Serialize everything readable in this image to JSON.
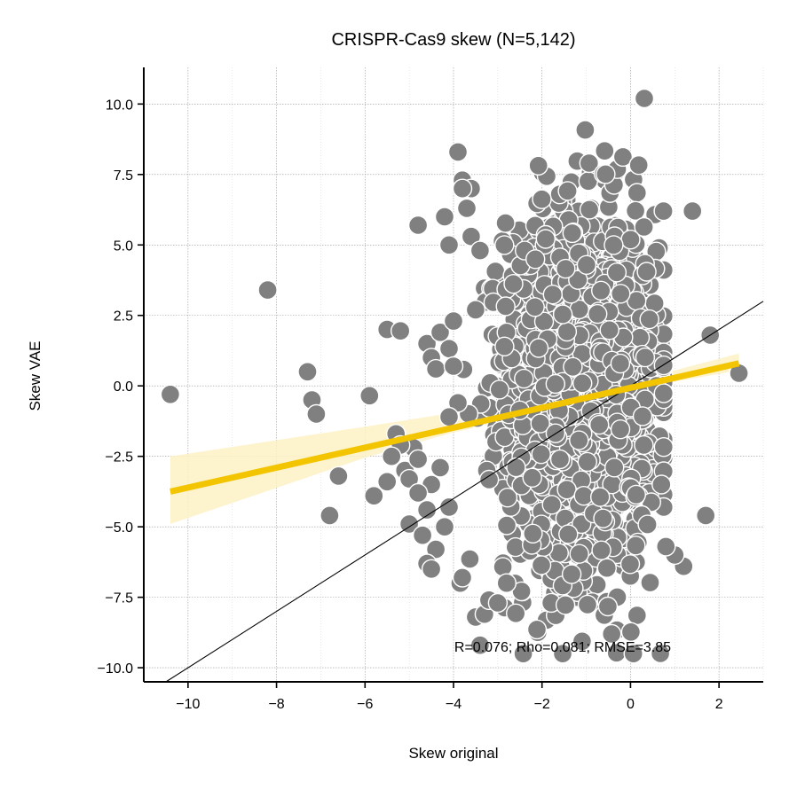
{
  "chart_data": {
    "type": "scatter",
    "title": "CRISPR-Cas9 skew (N=5,142)",
    "xlabel": "Skew original",
    "ylabel": "Skew VAE",
    "xlim": [
      -11,
      3
    ],
    "ylim": [
      -10.5,
      11.3
    ],
    "xticks": [
      -10,
      -8,
      -6,
      -4,
      -2,
      0,
      2
    ],
    "xtick_labels": [
      "−10",
      "−8",
      "−6",
      "−4",
      "−2",
      "0",
      "2"
    ],
    "yticks": [
      -10,
      -7.5,
      -5,
      -2.5,
      0,
      2.5,
      5,
      7.5,
      10
    ],
    "ytick_labels": [
      "−10.0",
      "−7.5",
      "−5.0",
      "−2.5",
      "0.0",
      "2.5",
      "5.0",
      "7.5",
      "10.0"
    ],
    "grid": true,
    "point_color": "#808080",
    "point_edge_color": "#ffffff",
    "regression_color": "#f2c500",
    "regression_ci_color": "#fdf1c4",
    "identity_line_color": "#000000",
    "annotation": "R=0.076; Rho=0.081; RMSE=3.85",
    "regression_line": {
      "x": [
        -10.4,
        2.45
      ],
      "y": [
        -3.75,
        0.8
      ]
    },
    "regression_ci": {
      "x": [
        -10.4,
        -6,
        -4,
        -2,
        0,
        1,
        2.45
      ],
      "lower": [
        -4.9,
        -2.55,
        -1.65,
        -0.95,
        -0.1,
        0.15,
        0.55
      ],
      "upper": [
        -2.5,
        -1.45,
        -0.95,
        -0.45,
        0.25,
        0.55,
        1.15
      ]
    },
    "identity_line": {
      "x": [
        -10.5,
        3
      ],
      "y": [
        -10.5,
        3
      ]
    },
    "outliers": {
      "x": [
        -10.4,
        -8.2,
        -7.2,
        -7.3,
        -7.1,
        -6.6,
        -6.8,
        -5.9,
        -5.8,
        -5.5,
        -5.2,
        -5.3,
        -5.1,
        -5.0,
        -4.8,
        -4.6,
        -4.5,
        -4.4,
        -4.3,
        -4.2,
        -4.1,
        -4.0,
        -3.9,
        -3.8,
        -3.7,
        -3.6,
        -3.5,
        -3.4,
        -4.5,
        -4.6,
        -4.4,
        -5.0,
        -4.9,
        -4.8,
        -4.7,
        -4.6,
        -4.5,
        -4.2,
        -4.1,
        -3.8,
        -3.3,
        -3.2,
        -3.0,
        -2.8,
        1.4,
        1.8,
        2.45,
        1.7,
        0.7,
        0.3,
        1.2,
        1.0,
        0.8,
        -3.8,
        -3.6,
        -3.4,
        -3.5,
        -4.0,
        -3.9,
        -5.2,
        -5.4,
        -5.5,
        -4.8,
        -4.3,
        -4.1
      ],
      "y": [
        -0.3,
        3.4,
        -0.5,
        0.5,
        -1.0,
        -3.2,
        -4.6,
        -0.35,
        -3.9,
        2.0,
        1.95,
        -1.7,
        -3.0,
        -4.9,
        5.7,
        1.5,
        1.0,
        0.6,
        1.9,
        6.0,
        5.0,
        2.3,
        8.3,
        7.3,
        6.3,
        7.0,
        -8.2,
        -9.2,
        -3.5,
        -4.4,
        -5.8,
        -3.3,
        -2.2,
        -2.6,
        -5.3,
        -6.3,
        -6.5,
        -5.0,
        -4.3,
        -6.8,
        -8.1,
        -7.6,
        -7.7,
        -7.0,
        6.2,
        1.8,
        0.45,
        -4.6,
        -3.5,
        -2.1,
        -6.4,
        -6.0,
        -5.7,
        7.0,
        5.3,
        4.8,
        2.7,
        0.7,
        -0.6,
        -2.1,
        -2.5,
        -3.4,
        -3.8,
        -2.9,
        -1.1
      ]
    },
    "bulk_distribution": {
      "n": 5142,
      "x_center": -1.1,
      "x_spread": 0.95,
      "x_range": [
        -4.1,
        0.75
      ],
      "y_range": [
        -9.5,
        10.2
      ],
      "y_center": -0.2,
      "y_spread": 4.3
    }
  }
}
